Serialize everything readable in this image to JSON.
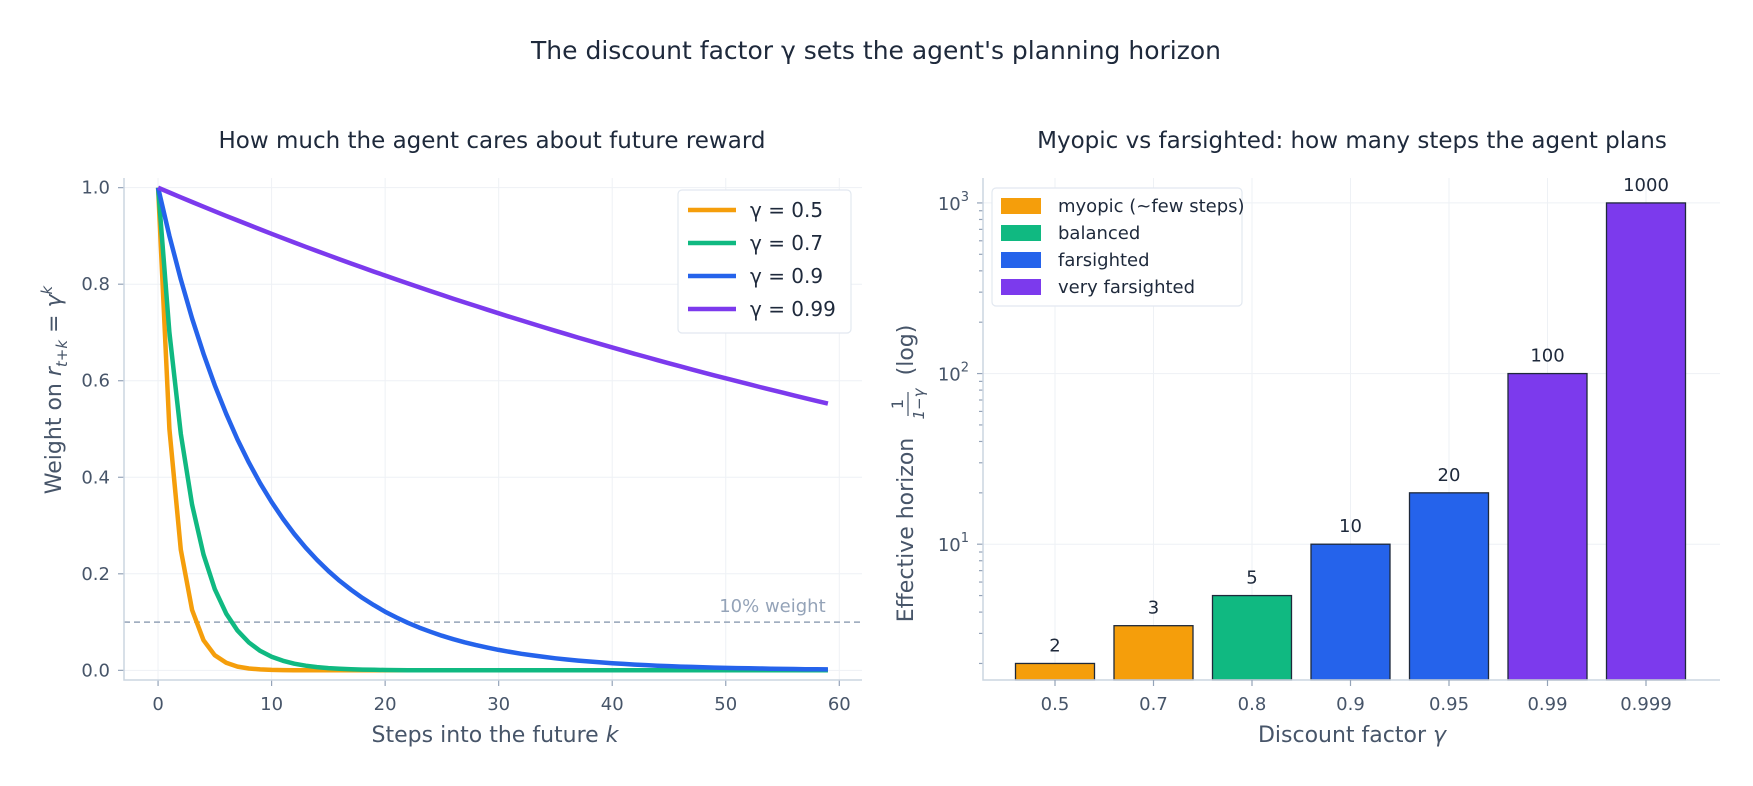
{
  "figure_title": "The discount factor γ sets the agent's planning horizon",
  "chart_data": [
    {
      "type": "line",
      "title": "How much the agent cares about future reward",
      "xlabel": "Steps into the future  k",
      "ylabel": "Weight on r_{t+k} = γ^k",
      "xlim": [
        -3,
        62
      ],
      "ylim": [
        -0.02,
        1.02
      ],
      "x_ticks": [
        0,
        10,
        20,
        30,
        40,
        50,
        60
      ],
      "y_ticks": [
        0.0,
        0.2,
        0.4,
        0.6,
        0.8,
        1.0
      ],
      "x_range": [
        0,
        59
      ],
      "grid": true,
      "legend_position": "top-right",
      "series": [
        {
          "name": "γ = 0.5",
          "gamma": 0.5,
          "color": "#f59e0b"
        },
        {
          "name": "γ = 0.7",
          "gamma": 0.7,
          "color": "#10b981"
        },
        {
          "name": "γ = 0.9",
          "gamma": 0.9,
          "color": "#2563eb"
        },
        {
          "name": "γ = 0.99",
          "gamma": 0.99,
          "color": "#7c3aed"
        }
      ],
      "reference_line": {
        "y": 0.1,
        "label": "10% weight",
        "color": "#94a3b8"
      }
    },
    {
      "type": "bar",
      "title": "Myopic vs farsighted: how many steps the agent plans",
      "xlabel": "Discount factor  γ",
      "ylabel": "Effective horizon 1/(1−γ) (log)",
      "y_scale": "log",
      "ylim": [
        1.6,
        1400
      ],
      "categories": [
        "0.5",
        "0.7",
        "0.8",
        "0.9",
        "0.95",
        "0.99",
        "0.999"
      ],
      "values": [
        2,
        3.33,
        5,
        10,
        20,
        100,
        1000
      ],
      "value_labels": [
        "2",
        "3",
        "5",
        "10",
        "20",
        "100",
        "1000"
      ],
      "groups": [
        "myopic",
        "myopic",
        "balanced",
        "farsighted",
        "farsighted",
        "very",
        "very"
      ],
      "grid": true,
      "legend_position": "top-left",
      "legend": [
        {
          "key": "myopic",
          "name": "myopic (~few steps)",
          "color": "#f59e0b"
        },
        {
          "key": "balanced",
          "name": "balanced",
          "color": "#10b981"
        },
        {
          "key": "farsighted",
          "name": "farsighted",
          "color": "#2563eb"
        },
        {
          "key": "very",
          "name": "very farsighted",
          "color": "#7c3aed"
        }
      ]
    }
  ]
}
